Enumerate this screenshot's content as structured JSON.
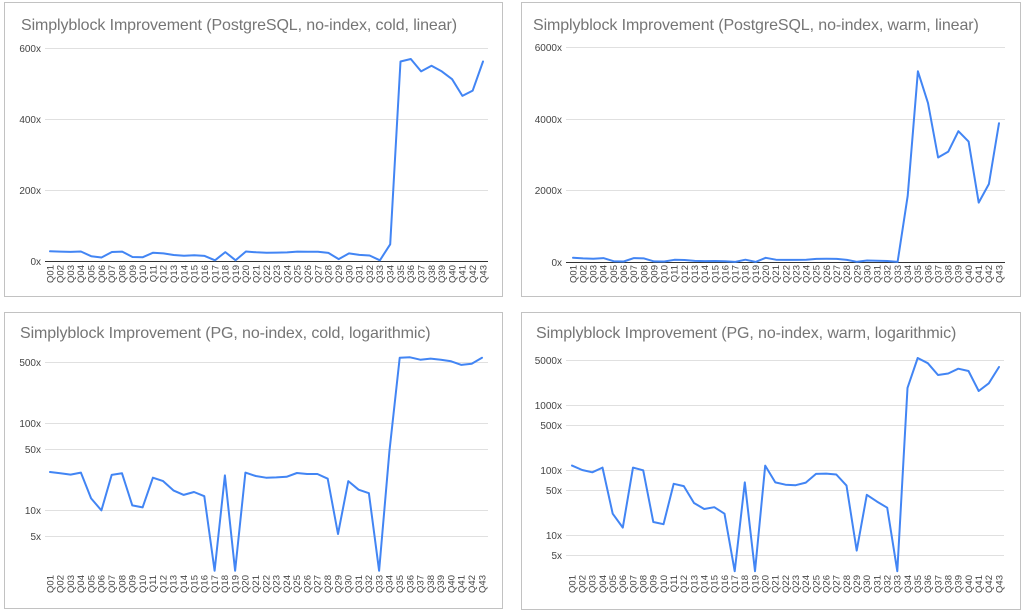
{
  "chart_data": [
    {
      "type": "line",
      "title": "Simplyblock Improvement (PostgreSQL, no-index, cold, linear)",
      "scale": "linear",
      "xlabel": "",
      "ylabel": "",
      "ylim": [
        0,
        600
      ],
      "yticks": [
        0,
        200,
        400,
        600
      ],
      "ytick_labels": [
        "0x",
        "200x",
        "400x",
        "600x"
      ],
      "grid": true,
      "legend": "none",
      "line_color": "#4285f4",
      "categories": [
        "Q01",
        "Q02",
        "Q03",
        "Q04",
        "Q05",
        "Q06",
        "Q07",
        "Q08",
        "Q09",
        "Q10",
        "Q11",
        "Q12",
        "Q13",
        "Q14",
        "Q15",
        "Q16",
        "Q17",
        "Q18",
        "Q19",
        "Q20",
        "Q21",
        "Q22",
        "Q23",
        "Q24",
        "Q25",
        "Q26",
        "Q27",
        "Q28",
        "Q29",
        "Q30",
        "Q31",
        "Q32",
        "Q33",
        "Q34",
        "Q35",
        "Q36",
        "Q37",
        "Q38",
        "Q39",
        "Q40",
        "Q41",
        "Q42",
        "Q43"
      ],
      "values": [
        27.3,
        26.4,
        25.5,
        26.9,
        13.6,
        9.9,
        25.3,
        26.4,
        11.3,
        10.7,
        23.5,
        21.5,
        16.8,
        14.9,
        16.1,
        14.4,
        2.0,
        25,
        2.0,
        26.9,
        24.6,
        23.5,
        23.7,
        24.1,
        26.6,
        25.9,
        25.9,
        22.9,
        5.3,
        21.5,
        17.1,
        15.6,
        2.0,
        47,
        562,
        569,
        534,
        550,
        534,
        512,
        465,
        480,
        562
      ]
    },
    {
      "type": "line",
      "title": "Simplyblock Improvement (PostgreSQL, no-index, warm, linear)",
      "scale": "linear",
      "xlabel": "",
      "ylabel": "",
      "ylim": [
        0,
        6000
      ],
      "yticks": [
        0,
        2000,
        4000,
        6000
      ],
      "ytick_labels": [
        "0x",
        "2000x",
        "4000x",
        "6000x"
      ],
      "grid": true,
      "legend": "none",
      "line_color": "#4285f4",
      "categories": [
        "Q01",
        "Q02",
        "Q03",
        "Q04",
        "Q05",
        "Q06",
        "Q07",
        "Q08",
        "Q09",
        "Q10",
        "Q11",
        "Q12",
        "Q13",
        "Q14",
        "Q15",
        "Q16",
        "Q17",
        "Q18",
        "Q19",
        "Q20",
        "Q21",
        "Q22",
        "Q23",
        "Q24",
        "Q25",
        "Q26",
        "Q27",
        "Q28",
        "Q29",
        "Q30",
        "Q31",
        "Q32",
        "Q33",
        "Q34",
        "Q35",
        "Q36",
        "Q37",
        "Q38",
        "Q39",
        "Q40",
        "Q41",
        "Q42",
        "Q43"
      ],
      "values": [
        118,
        101,
        93,
        110,
        21.5,
        13.1,
        110,
        100,
        16,
        14.8,
        62,
        57,
        31.4,
        25.4,
        27,
        21.5,
        2.8,
        65,
        2.8,
        118,
        65,
        60,
        59,
        64.5,
        88,
        89,
        86,
        58,
        5.8,
        42,
        33,
        26.6,
        2.8,
        1850,
        5330,
        4440,
        2920,
        3085,
        3655,
        3365,
        1660,
        2180,
        3880
      ]
    },
    {
      "type": "line",
      "title": "Simplyblock Improvement (PG, no-index, cold, logarithmic)",
      "scale": "logarithmic",
      "xlabel": "",
      "ylabel": "",
      "ylim": [
        2,
        600
      ],
      "yticks": [
        5,
        10,
        50,
        100,
        500
      ],
      "ytick_labels": [
        "5x",
        "10x",
        "50x",
        "100x",
        "500x"
      ],
      "grid": true,
      "legend": "none",
      "line_color": "#4285f4",
      "categories": [
        "Q01",
        "Q02",
        "Q03",
        "Q04",
        "Q05",
        "Q06",
        "Q07",
        "Q08",
        "Q09",
        "Q10",
        "Q11",
        "Q12",
        "Q13",
        "Q14",
        "Q15",
        "Q16",
        "Q17",
        "Q18",
        "Q19",
        "Q20",
        "Q21",
        "Q22",
        "Q23",
        "Q24",
        "Q25",
        "Q26",
        "Q27",
        "Q28",
        "Q29",
        "Q30",
        "Q31",
        "Q32",
        "Q33",
        "Q34",
        "Q35",
        "Q36",
        "Q37",
        "Q38",
        "Q39",
        "Q40",
        "Q41",
        "Q42",
        "Q43"
      ],
      "values": [
        27.3,
        26.4,
        25.5,
        26.9,
        13.6,
        9.9,
        25.3,
        26.4,
        11.3,
        10.7,
        23.5,
        21.5,
        16.8,
        14.9,
        16.1,
        14.4,
        2.0,
        25,
        2.0,
        26.9,
        24.6,
        23.5,
        23.7,
        24.1,
        26.6,
        25.9,
        25.9,
        22.9,
        5.3,
        21.5,
        17.1,
        15.6,
        2.0,
        47,
        562,
        569,
        534,
        550,
        534,
        512,
        465,
        480,
        562
      ]
    },
    {
      "type": "line",
      "title": "Simplyblock Improvement (PG, no-index, warm, logarithmic)",
      "scale": "logarithmic",
      "xlabel": "",
      "ylabel": "",
      "ylim": [
        2.8,
        6000
      ],
      "yticks": [
        5,
        10,
        50,
        100,
        500,
        1000,
        5000
      ],
      "ytick_labels": [
        "5x",
        "10x",
        "50x",
        "100x",
        "500x",
        "1000x",
        "5000x"
      ],
      "grid": true,
      "legend": "none",
      "line_color": "#4285f4",
      "categories": [
        "Q01",
        "Q02",
        "Q03",
        "Q04",
        "Q05",
        "Q06",
        "Q07",
        "Q08",
        "Q09",
        "Q10",
        "Q11",
        "Q12",
        "Q13",
        "Q14",
        "Q15",
        "Q16",
        "Q17",
        "Q18",
        "Q19",
        "Q20",
        "Q21",
        "Q22",
        "Q23",
        "Q24",
        "Q25",
        "Q26",
        "Q27",
        "Q28",
        "Q29",
        "Q30",
        "Q31",
        "Q32",
        "Q33",
        "Q34",
        "Q35",
        "Q36",
        "Q37",
        "Q38",
        "Q39",
        "Q40",
        "Q41",
        "Q42",
        "Q43"
      ],
      "values": [
        118,
        101,
        93,
        110,
        21.5,
        13.1,
        110,
        100,
        16,
        14.8,
        62,
        57,
        31.4,
        25.4,
        27,
        21.5,
        2.8,
        65,
        2.8,
        118,
        65,
        60,
        59,
        64.5,
        88,
        89,
        86,
        58,
        5.8,
        42,
        33,
        26.6,
        2.8,
        1850,
        5330,
        4440,
        2920,
        3085,
        3655,
        3365,
        1660,
        2180,
        3880
      ]
    }
  ]
}
